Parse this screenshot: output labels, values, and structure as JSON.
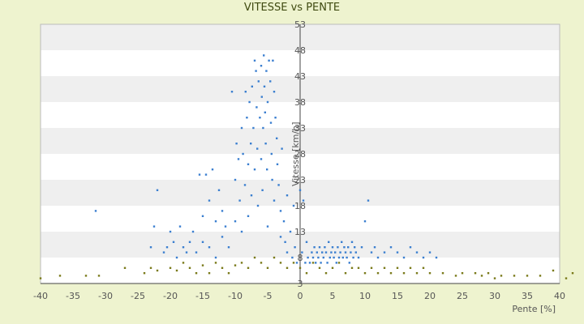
{
  "chart_data": {
    "type": "scatter",
    "title": "VITESSE vs PENTE",
    "xlabel": "Pente [%]",
    "ylabel": "Vitesse [km/h]",
    "xlim": [
      -40,
      40
    ],
    "ylim": [
      3,
      53
    ],
    "xticks": [
      -40,
      -35,
      -30,
      -25,
      -20,
      -15,
      -10,
      -5,
      0,
      5,
      10,
      15,
      20,
      25,
      30,
      35,
      40
    ],
    "yticks": [
      3,
      8,
      13,
      18,
      23,
      28,
      33,
      38,
      43,
      48,
      53
    ],
    "colors": {
      "blue": "#3b7fd0",
      "olive": "#7a7a1a",
      "band": "#efefef",
      "plot_bg": "#ffffff",
      "axis": "#444444"
    },
    "series": [
      {
        "color": "#3b7fd0",
        "points": [
          [
            -31.5,
            17
          ],
          [
            -23,
            10
          ],
          [
            -22.5,
            14
          ],
          [
            -22,
            21
          ],
          [
            -21,
            9
          ],
          [
            -20.5,
            10
          ],
          [
            -20,
            13
          ],
          [
            -19.5,
            11
          ],
          [
            -19,
            8
          ],
          [
            -18.5,
            14
          ],
          [
            -18,
            10
          ],
          [
            -17.5,
            9
          ],
          [
            -17,
            11
          ],
          [
            -16.5,
            13
          ],
          [
            -16,
            9
          ],
          [
            -15.5,
            24
          ],
          [
            -15,
            16
          ],
          [
            -15,
            11
          ],
          [
            -14.5,
            24
          ],
          [
            -14,
            19
          ],
          [
            -14,
            10
          ],
          [
            -13.5,
            25
          ],
          [
            -13,
            15
          ],
          [
            -13,
            8
          ],
          [
            -12.5,
            21
          ],
          [
            -12,
            17
          ],
          [
            -12,
            12
          ],
          [
            -11.5,
            14
          ],
          [
            -11,
            10
          ],
          [
            -10.5,
            40
          ],
          [
            -10,
            23
          ],
          [
            -10,
            15
          ],
          [
            -9.8,
            30
          ],
          [
            -9.5,
            27
          ],
          [
            -9.3,
            19
          ],
          [
            -9,
            33
          ],
          [
            -9,
            13
          ],
          [
            -8.8,
            28
          ],
          [
            -8.5,
            22
          ],
          [
            -8.4,
            40
          ],
          [
            -8.2,
            35
          ],
          [
            -8,
            16
          ],
          [
            -8,
            26
          ],
          [
            -7.8,
            38
          ],
          [
            -7.6,
            30
          ],
          [
            -7.5,
            20
          ],
          [
            -7.4,
            41
          ],
          [
            -7.2,
            33
          ],
          [
            -7,
            46
          ],
          [
            -7,
            25
          ],
          [
            -6.8,
            44
          ],
          [
            -6.7,
            37
          ],
          [
            -6.6,
            29
          ],
          [
            -6.5,
            18
          ],
          [
            -6.4,
            42
          ],
          [
            -6.2,
            35
          ],
          [
            -6,
            45
          ],
          [
            -6,
            27
          ],
          [
            -5.9,
            39
          ],
          [
            -5.8,
            21
          ],
          [
            -5.7,
            33
          ],
          [
            -5.6,
            47
          ],
          [
            -5.5,
            41
          ],
          [
            -5.4,
            36
          ],
          [
            -5.3,
            30
          ],
          [
            -5.2,
            44
          ],
          [
            -5.1,
            25
          ],
          [
            -5,
            38
          ],
          [
            -5,
            14
          ],
          [
            -4.8,
            46
          ],
          [
            -4.6,
            42
          ],
          [
            -4.5,
            34
          ],
          [
            -4.4,
            28
          ],
          [
            -4.3,
            23
          ],
          [
            -4.2,
            46
          ],
          [
            -4,
            40
          ],
          [
            -4,
            19
          ],
          [
            -3.8,
            35
          ],
          [
            -3.6,
            31
          ],
          [
            -3.5,
            26
          ],
          [
            -3.3,
            22
          ],
          [
            -3,
            17
          ],
          [
            -3,
            12
          ],
          [
            -2.8,
            29
          ],
          [
            -2.5,
            15
          ],
          [
            -2.3,
            11
          ],
          [
            -2,
            20
          ],
          [
            -2,
            9
          ],
          [
            -1.5,
            13
          ],
          [
            -1.2,
            8
          ],
          [
            -1,
            18
          ],
          [
            -0.8,
            10
          ],
          [
            -0.5,
            7
          ],
          [
            0,
            21
          ],
          [
            0.3,
            9
          ],
          [
            0.5,
            19
          ],
          [
            0.8,
            7
          ],
          [
            1,
            11
          ],
          [
            1.2,
            8
          ],
          [
            1.5,
            7
          ],
          [
            1.8,
            9
          ],
          [
            2,
            8
          ],
          [
            2.2,
            10
          ],
          [
            2.4,
            7
          ],
          [
            2.6,
            9
          ],
          [
            2.8,
            8
          ],
          [
            3,
            10
          ],
          [
            3.2,
            7
          ],
          [
            3.4,
            9
          ],
          [
            3.6,
            8
          ],
          [
            3.8,
            10
          ],
          [
            4,
            9
          ],
          [
            4.2,
            7
          ],
          [
            4.4,
            11
          ],
          [
            4.6,
            8
          ],
          [
            4.8,
            9
          ],
          [
            5,
            10
          ],
          [
            5.2,
            8
          ],
          [
            5.4,
            9
          ],
          [
            5.6,
            7
          ],
          [
            5.8,
            10
          ],
          [
            6,
            8
          ],
          [
            6.2,
            9
          ],
          [
            6.4,
            11
          ],
          [
            6.6,
            8
          ],
          [
            6.8,
            10
          ],
          [
            7,
            9
          ],
          [
            7.2,
            8
          ],
          [
            7.4,
            10
          ],
          [
            7.6,
            7
          ],
          [
            7.8,
            9
          ],
          [
            8,
            11
          ],
          [
            8.2,
            8
          ],
          [
            8.4,
            10
          ],
          [
            8.6,
            9
          ],
          [
            9,
            8
          ],
          [
            9.5,
            10
          ],
          [
            10,
            15
          ],
          [
            10.5,
            19
          ],
          [
            11,
            9
          ],
          [
            11.5,
            10
          ],
          [
            12,
            8
          ],
          [
            13,
            9
          ],
          [
            14,
            10
          ],
          [
            15,
            9
          ],
          [
            16,
            8
          ],
          [
            17,
            10
          ],
          [
            18,
            9
          ],
          [
            19,
            8
          ],
          [
            20,
            9
          ],
          [
            21,
            8
          ]
        ]
      },
      {
        "color": "#7a7a1a",
        "points": [
          [
            -40,
            4
          ],
          [
            -37,
            4.5
          ],
          [
            -33,
            4.5
          ],
          [
            -31,
            4.5
          ],
          [
            -27,
            6
          ],
          [
            -24,
            5
          ],
          [
            -23,
            6
          ],
          [
            -22,
            5.5
          ],
          [
            -20,
            6
          ],
          [
            -19,
            5.5
          ],
          [
            -18,
            7
          ],
          [
            -17,
            6
          ],
          [
            -16,
            5
          ],
          [
            -15,
            6.5
          ],
          [
            -14,
            5
          ],
          [
            -13,
            7
          ],
          [
            -12,
            6
          ],
          [
            -11,
            5
          ],
          [
            -10,
            6.5
          ],
          [
            -9,
            7
          ],
          [
            -8,
            6
          ],
          [
            -7,
            8
          ],
          [
            -6,
            7
          ],
          [
            -5,
            6
          ],
          [
            -4,
            8
          ],
          [
            -3,
            7
          ],
          [
            -2,
            6
          ],
          [
            -1,
            7
          ],
          [
            0,
            6
          ],
          [
            1,
            5
          ],
          [
            2,
            7
          ],
          [
            3,
            6
          ],
          [
            4,
            5
          ],
          [
            5,
            6
          ],
          [
            6,
            7
          ],
          [
            7,
            5
          ],
          [
            8,
            6
          ],
          [
            9,
            6
          ],
          [
            10,
            5
          ],
          [
            11,
            6
          ],
          [
            12,
            5
          ],
          [
            13,
            6
          ],
          [
            14,
            5
          ],
          [
            15,
            6
          ],
          [
            16,
            5
          ],
          [
            17,
            6
          ],
          [
            18,
            5
          ],
          [
            19,
            6
          ],
          [
            20,
            5
          ],
          [
            22,
            5
          ],
          [
            24,
            4.5
          ],
          [
            25,
            5
          ],
          [
            27,
            5
          ],
          [
            28,
            4.5
          ],
          [
            29,
            5
          ],
          [
            30,
            4
          ],
          [
            31,
            4.5
          ],
          [
            33,
            4.5
          ],
          [
            35,
            4.5
          ],
          [
            37,
            4.5
          ],
          [
            39,
            5.5
          ],
          [
            41,
            4
          ],
          [
            42,
            5
          ]
        ]
      }
    ]
  }
}
